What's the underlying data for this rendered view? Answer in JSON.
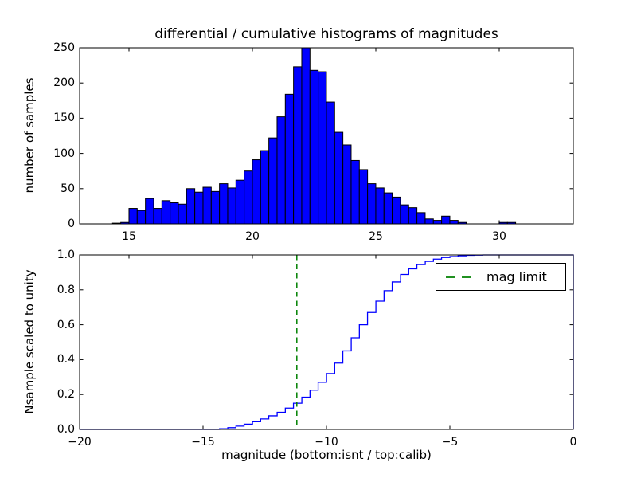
{
  "figure": {
    "title": "differential / cumulative histograms of magnitudes",
    "xlabel": "magnitude (bottom:isnt / top:calib)",
    "background_color": "#ffffff"
  },
  "top_plot": {
    "ylabel": "number of samples",
    "ytick_labels": [
      "250",
      "200",
      "150",
      "100",
      "50",
      "0"
    ],
    "xtick_labels": [
      "15",
      "20",
      "25",
      "30"
    ]
  },
  "bottom_plot": {
    "ylabel": "Nsample scaled to unity",
    "ytick_labels": [
      "1.0",
      "0.8",
      "0.6",
      "0.4",
      "0.2",
      "0.0"
    ],
    "xtick_labels": [
      "−20",
      "−15",
      "−10",
      "−5",
      "0"
    ],
    "legend_label": "mag limit"
  },
  "chart_data": [
    {
      "type": "bar",
      "subplot": "top",
      "title": "differential / cumulative histograms of magnitudes",
      "ylabel": "number of samples",
      "xlim": [
        13,
        33
      ],
      "ylim": [
        0,
        250
      ],
      "xticks": [
        15,
        20,
        25,
        30
      ],
      "yticks": [
        0,
        50,
        100,
        150,
        200,
        250
      ],
      "grid": false,
      "bin_start": 14.333,
      "bin_width": 0.3333,
      "values": [
        1,
        2,
        22,
        19,
        36,
        22,
        33,
        30,
        28,
        50,
        45,
        52,
        46,
        57,
        51,
        62,
        75,
        91,
        104,
        122,
        152,
        184,
        223,
        250,
        218,
        216,
        173,
        130,
        112,
        90,
        77,
        57,
        51,
        44,
        38,
        27,
        23,
        16,
        7,
        5,
        11,
        5,
        2,
        0,
        0,
        0,
        0,
        2,
        2
      ],
      "bar_color": "#0000ff",
      "bar_edge_color": "#000000"
    },
    {
      "type": "line",
      "subplot": "bottom",
      "style": "cumulative-step",
      "ylabel": "Nsample scaled to unity",
      "xlabel": "magnitude (bottom:isnt / top:calib)",
      "xlim": [
        -20,
        0
      ],
      "ylim": [
        0,
        1.0
      ],
      "xticks": [
        -20,
        -15,
        -10,
        -5,
        0
      ],
      "yticks": [
        0.0,
        0.2,
        0.4,
        0.6,
        0.8,
        1.0
      ],
      "top_spine_ticks_calib_scale": [
        15,
        20,
        25,
        30
      ],
      "grid": false,
      "line_color": "#0000ff",
      "bin_width": 0.3333,
      "cumulative_points": [
        [
          -14.33,
          0.004
        ],
        [
          -14.0,
          0.01
        ],
        [
          -13.67,
          0.019
        ],
        [
          -13.33,
          0.03
        ],
        [
          -13.0,
          0.044
        ],
        [
          -12.67,
          0.06
        ],
        [
          -12.33,
          0.078
        ],
        [
          -12.0,
          0.098
        ],
        [
          -11.67,
          0.122
        ],
        [
          -11.33,
          0.15
        ],
        [
          -11.0,
          0.185
        ],
        [
          -10.67,
          0.225
        ],
        [
          -10.33,
          0.27
        ],
        [
          -10.0,
          0.32
        ],
        [
          -9.67,
          0.38
        ],
        [
          -9.33,
          0.45
        ],
        [
          -9.0,
          0.525
        ],
        [
          -8.67,
          0.6
        ],
        [
          -8.33,
          0.67
        ],
        [
          -8.0,
          0.735
        ],
        [
          -7.67,
          0.795
        ],
        [
          -7.33,
          0.845
        ],
        [
          -7.0,
          0.888
        ],
        [
          -6.67,
          0.92
        ],
        [
          -6.33,
          0.945
        ],
        [
          -6.0,
          0.963
        ],
        [
          -5.67,
          0.976
        ],
        [
          -5.33,
          0.985
        ],
        [
          -5.0,
          0.991
        ],
        [
          -4.67,
          0.995
        ],
        [
          -4.33,
          0.998
        ],
        [
          -4.0,
          0.999
        ],
        [
          -3.67,
          1.0
        ]
      ],
      "vline": {
        "x": -11.2,
        "color": "#008000",
        "linestyle": "dashed",
        "label": "mag limit"
      },
      "legend": {
        "label": "mag limit",
        "location": "upper right"
      }
    }
  ]
}
